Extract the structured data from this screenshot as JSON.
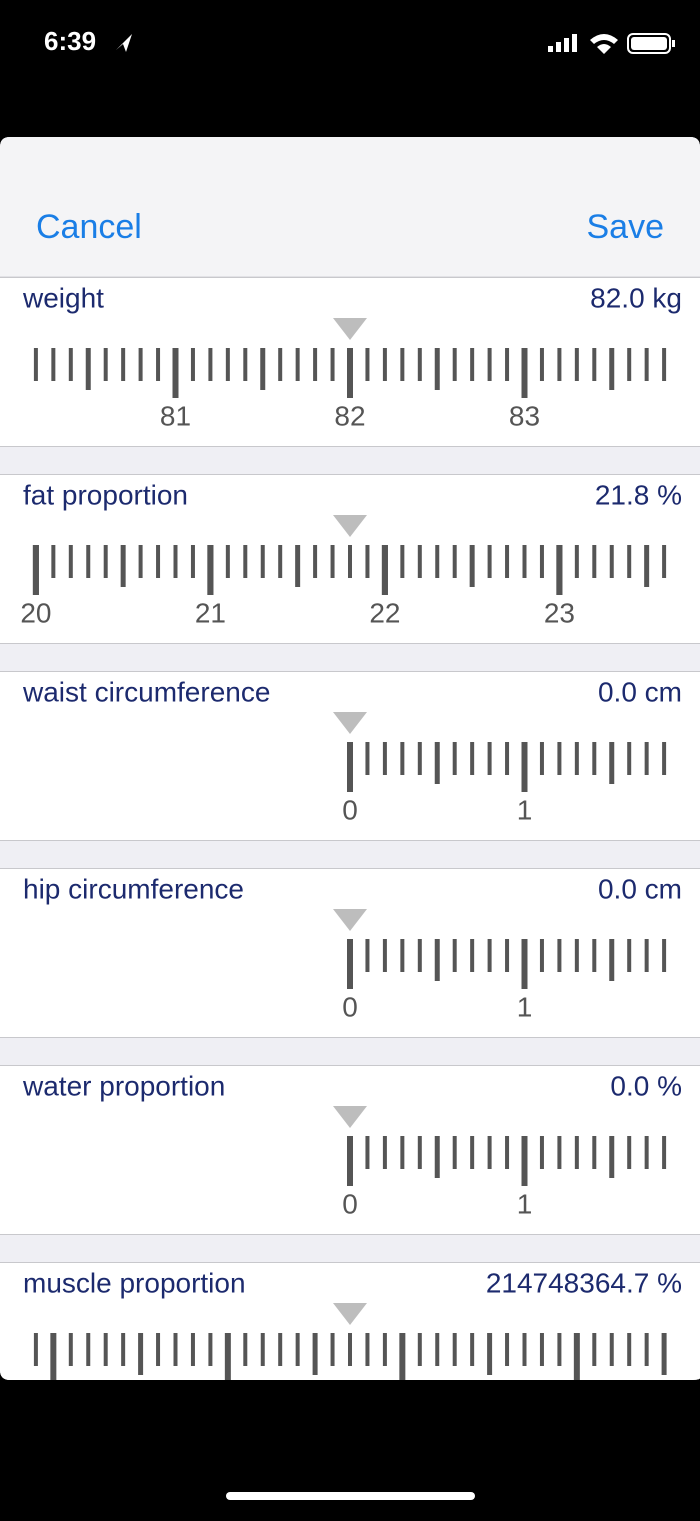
{
  "status_bar": {
    "time": "6:39"
  },
  "header": {
    "cancel": "Cancel",
    "save": "Save"
  },
  "rows": [
    {
      "label": "weight",
      "value": 82.0,
      "value_label": "82.0 kg",
      "ticks": [
        81,
        82,
        83
      ]
    },
    {
      "label": "fat proportion",
      "value": 21.8,
      "value_label": "21.8 %",
      "ticks": [
        20,
        21,
        22,
        23
      ]
    },
    {
      "label": "waist circumference",
      "value": 0.0,
      "value_label": "0.0 cm",
      "ticks": [
        0,
        1
      ]
    },
    {
      "label": "hip circumference",
      "value": 0.0,
      "value_label": "0.0 cm",
      "ticks": [
        0,
        1
      ]
    },
    {
      "label": "water proportion",
      "value": 0.0,
      "value_label": "0.0 %",
      "ticks": [
        0,
        1
      ]
    },
    {
      "label": "muscle proportion",
      "value": 214748364.7,
      "value_label": "214748364.7 %",
      "ticks": []
    }
  ]
}
